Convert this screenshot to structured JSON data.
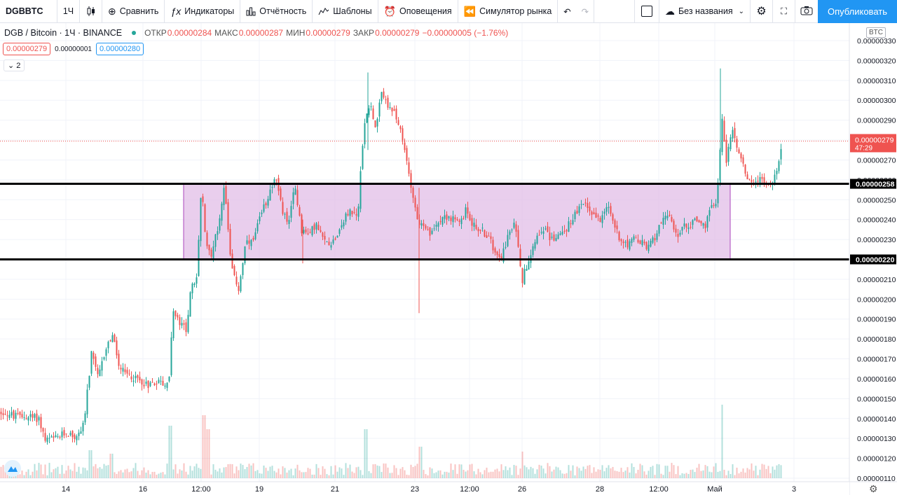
{
  "toolbar": {
    "symbol": "DGBBTC",
    "interval": "1Ч",
    "compare": "Сравнить",
    "indicators": "Индикаторы",
    "financials": "Отчётность",
    "templates": "Шаблоны",
    "alerts": "Оповещения",
    "replay": "Симулятор рынка",
    "layout_name": "Без названия",
    "publish": "Опубликовать"
  },
  "legend": {
    "title": "DGB / Bitcoin · 1Ч · BINANCE",
    "open_label": "ОТКР",
    "open": "0.00000284",
    "high_label": "МАКС",
    "high": "0.00000287",
    "low_label": "МИН",
    "low": "0.00000279",
    "close_label": "ЗАКР",
    "close": "0.00000279",
    "change": "−0.00000005 (−1.76%)"
  },
  "trade": {
    "sell": "0.00000279",
    "spread": "0.00000001",
    "buy": "0.00000280"
  },
  "collapse_label": "2",
  "currency_badge": "BTC",
  "colors": {
    "up": "#26a69a",
    "down": "#ef5350",
    "zone_fill": "#e1bee7",
    "zone_border": "#ab47bc",
    "accent": "#2196f3"
  },
  "chart_data": {
    "type": "candlestick",
    "ylim": [
      1.1e-06,
      3.3e-06
    ],
    "y_ticks": [
      "0.00000330",
      "0.00000320",
      "0.00000310",
      "0.00000300",
      "0.00000290",
      "0.00000280",
      "0.00000270",
      "0.00000260",
      "0.00000250",
      "0.00000240",
      "0.00000230",
      "0.00000220",
      "0.00000210",
      "0.00000200",
      "0.00000190",
      "0.00000180",
      "0.00000170",
      "0.00000160",
      "0.00000150",
      "0.00000140",
      "0.00000130",
      "0.00000120",
      "0.00000110"
    ],
    "x_ticks": [
      "14",
      "16",
      "12:00",
      "19",
      "21",
      "23",
      "12:00",
      "26",
      "28",
      "12:00",
      "Май",
      "3"
    ],
    "price_path": [
      [
        0,
        143
      ],
      [
        6,
        143
      ],
      [
        20,
        141
      ],
      [
        40,
        141
      ],
      [
        55,
        140
      ],
      [
        64,
        129
      ],
      [
        80,
        130
      ],
      [
        95,
        133
      ],
      [
        110,
        130
      ],
      [
        120,
        140
      ],
      [
        130,
        172
      ],
      [
        140,
        160
      ],
      [
        150,
        175
      ],
      [
        160,
        182
      ],
      [
        170,
        165
      ],
      [
        180,
        162
      ],
      [
        195,
        160
      ],
      [
        210,
        157
      ],
      [
        225,
        159
      ],
      [
        240,
        156
      ],
      [
        246,
        194
      ],
      [
        255,
        188
      ],
      [
        265,
        185
      ],
      [
        272,
        205
      ],
      [
        280,
        210
      ],
      [
        287,
        258
      ],
      [
        292,
        232
      ],
      [
        300,
        222
      ],
      [
        310,
        235
      ],
      [
        320,
        258
      ],
      [
        330,
        215
      ],
      [
        340,
        205
      ],
      [
        350,
        228
      ],
      [
        360,
        228
      ],
      [
        370,
        240
      ],
      [
        382,
        252
      ],
      [
        392,
        262
      ],
      [
        402,
        245
      ],
      [
        412,
        238
      ],
      [
        420,
        258
      ],
      [
        430,
        235
      ],
      [
        440,
        232
      ],
      [
        450,
        238
      ],
      [
        460,
        230
      ],
      [
        470,
        228
      ],
      [
        480,
        232
      ],
      [
        490,
        240
      ],
      [
        500,
        245
      ],
      [
        510,
        240
      ],
      [
        515,
        270
      ],
      [
        520,
        290
      ],
      [
        528,
        300
      ],
      [
        535,
        285
      ],
      [
        545,
        305
      ],
      [
        555,
        295
      ],
      [
        565,
        292
      ],
      [
        575,
        278
      ],
      [
        585,
        260
      ],
      [
        595,
        240
      ],
      [
        605,
        235
      ],
      [
        615,
        232
      ],
      [
        625,
        240
      ],
      [
        635,
        242
      ],
      [
        645,
        240
      ],
      [
        655,
        238
      ],
      [
        665,
        245
      ],
      [
        675,
        237
      ],
      [
        685,
        235
      ],
      [
        695,
        232
      ],
      [
        705,
        225
      ],
      [
        715,
        222
      ],
      [
        725,
        232
      ],
      [
        735,
        238
      ],
      [
        745,
        210
      ],
      [
        755,
        222
      ],
      [
        765,
        232
      ],
      [
        775,
        236
      ],
      [
        785,
        230
      ],
      [
        795,
        232
      ],
      [
        805,
        234
      ],
      [
        815,
        240
      ],
      [
        825,
        245
      ],
      [
        835,
        248
      ],
      [
        845,
        243
      ],
      [
        855,
        240
      ],
      [
        865,
        248
      ],
      [
        875,
        238
      ],
      [
        885,
        230
      ],
      [
        895,
        228
      ],
      [
        905,
        230
      ],
      [
        915,
        228
      ],
      [
        925,
        226
      ],
      [
        935,
        232
      ],
      [
        945,
        242
      ],
      [
        955,
        240
      ],
      [
        965,
        232
      ],
      [
        975,
        236
      ],
      [
        985,
        238
      ],
      [
        995,
        240
      ],
      [
        1005,
        236
      ],
      [
        1015,
        246
      ],
      [
        1022,
        250
      ],
      [
        1030,
        290
      ],
      [
        1036,
        270
      ],
      [
        1046,
        286
      ],
      [
        1056,
        270
      ],
      [
        1066,
        262
      ],
      [
        1076,
        258
      ],
      [
        1086,
        262
      ],
      [
        1096,
        256
      ],
      [
        1106,
        262
      ],
      [
        1116,
        280
      ]
    ],
    "last_price": "0.00000279",
    "countdown": "47:29",
    "levels": [
      {
        "value": "0.00000258",
        "price": 258
      },
      {
        "value": "0.00000220",
        "price": 220
      }
    ],
    "zone": {
      "x_from_index": 287,
      "x_to_index": 1042,
      "upper": 258,
      "lower": 220
    }
  }
}
